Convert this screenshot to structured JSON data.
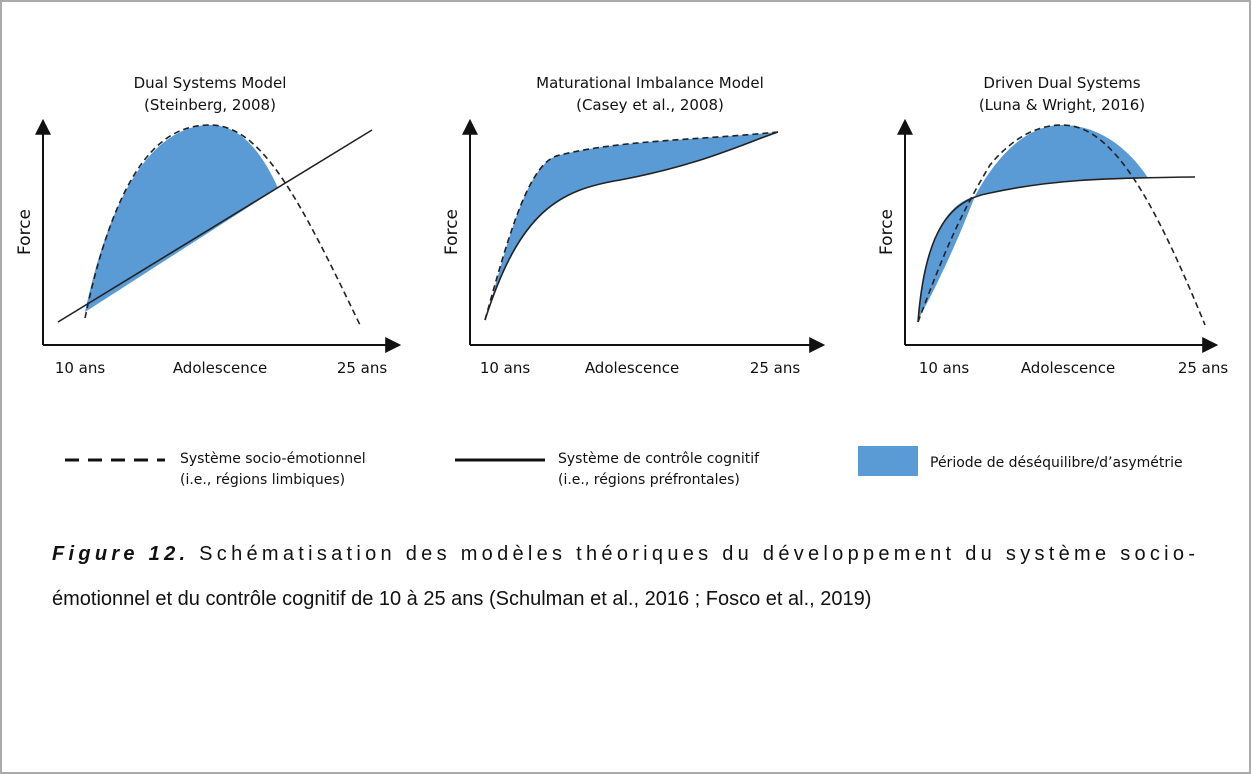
{
  "panels": [
    {
      "title": "Dual Systems Model",
      "subtitle": "(Steinberg, 2008)",
      "y_label": "Force",
      "x_labels": [
        "10 ans",
        "Adolescence",
        "25 ans"
      ]
    },
    {
      "title": "Maturational Imbalance Model",
      "subtitle": "(Casey et al., 2008)",
      "y_label": "Force",
      "x_labels": [
        "10 ans",
        "Adolescence",
        "25 ans"
      ]
    },
    {
      "title": "Driven Dual Systems",
      "subtitle": "(Luna & Wright, 2016)",
      "y_label": "Force",
      "x_labels": [
        "10 ans",
        "Adolescence",
        "25 ans"
      ]
    }
  ],
  "legend": [
    {
      "line1": "Système socio-émotionnel",
      "line2": "(i.e., régions limbiques)"
    },
    {
      "line1": "Système de contrôle cognitif",
      "line2": "(i.e., régions préfrontales)"
    },
    {
      "line1": "Période de déséquilibre/d’asymétrie"
    }
  ],
  "caption": {
    "label": "Figure 12.",
    "line1": "Schématisation des modèles théoriques du développement du système socio-",
    "line2": "émotionnel et du contrôle cognitif de 10 à 25 ans (Schulman et al., 2016 ; Fosco et al., 2019)"
  }
}
